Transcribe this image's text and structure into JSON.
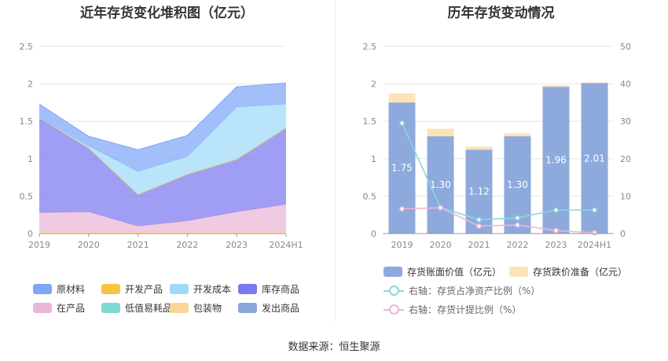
{
  "footer": {
    "source": "数据来源：恒生聚源"
  },
  "left": {
    "title": "近年存货变化堆积图（亿元）",
    "legend": [
      {
        "name": "原材料",
        "color": "#7fa6f8"
      },
      {
        "name": "开发产品",
        "color": "#f6c343"
      },
      {
        "name": "开发成本",
        "color": "#9fd9f8"
      },
      {
        "name": "库存商品",
        "color": "#7b78f0"
      },
      {
        "name": "在产品",
        "color": "#eab6d8"
      },
      {
        "name": "低值易耗品",
        "color": "#7fd8d4"
      },
      {
        "name": "包装物",
        "color": "#fbd596"
      },
      {
        "name": "发出商品",
        "color": "#8aa6d8"
      }
    ]
  },
  "right": {
    "title": "历年存货变动情况",
    "legend": [
      {
        "name": "存货账面价值（亿元）",
        "color": "#8eaadc"
      },
      {
        "name": "存货跌价准备（亿元）",
        "color": "#fde3b8"
      },
      {
        "name": "右轴：存货占净资产比例（%）",
        "color": "#8ad8d6"
      },
      {
        "name": "右轴：存货计提比例（%）",
        "color": "#eab6d8"
      }
    ]
  },
  "chart_data": [
    {
      "type": "area",
      "stacked": true,
      "title": "近年存货变化堆积图（亿元）",
      "categories": [
        "2019",
        "2020",
        "2021",
        "2022",
        "2023",
        "2024H1"
      ],
      "ylim": [
        0,
        2.5
      ],
      "yticks": [
        "0",
        "0.5",
        "1",
        "1.5",
        "2",
        "2.5"
      ],
      "series": [
        {
          "name": "包装物",
          "color": "#fbd596",
          "values": [
            0.02,
            0.02,
            0.02,
            0.02,
            0.02,
            0.02
          ]
        },
        {
          "name": "在产品",
          "color": "#eab6d8",
          "values": [
            0.26,
            0.27,
            0.08,
            0.15,
            0.27,
            0.37
          ]
        },
        {
          "name": "库存商品",
          "color": "#7b78f0",
          "values": [
            1.25,
            0.85,
            0.42,
            0.62,
            0.7,
            1.02
          ]
        },
        {
          "name": "开发产品",
          "color": "#f6c343",
          "values": [
            0.01,
            0.0,
            0.0,
            0.0,
            0.0,
            0.0
          ]
        },
        {
          "name": "开发成本",
          "color": "#9fd9f8",
          "values": [
            0.0,
            0.03,
            0.31,
            0.24,
            0.7,
            0.32
          ]
        },
        {
          "name": "原材料",
          "color": "#7fa6f8",
          "values": [
            0.19,
            0.13,
            0.29,
            0.28,
            0.27,
            0.28
          ]
        }
      ]
    },
    {
      "type": "bar",
      "stacked": true,
      "title": "历年存货变动情况",
      "categories": [
        "2019",
        "2020",
        "2021",
        "2022",
        "2023",
        "2024H1"
      ],
      "ylim": [
        0,
        2.5
      ],
      "yticks": [
        "0",
        "0.5",
        "1",
        "1.5",
        "2",
        "2.5"
      ],
      "y2lim": [
        0,
        50
      ],
      "y2ticks": [
        "0",
        "10",
        "20",
        "30",
        "40",
        "50"
      ],
      "series": [
        {
          "name": "存货账面价值（亿元）",
          "color": "#8eaadc",
          "values": [
            1.75,
            1.3,
            1.12,
            1.3,
            1.96,
            2.01
          ],
          "labels": [
            "1.75",
            "1.30",
            "1.12",
            "1.30",
            "1.96",
            "2.01"
          ]
        },
        {
          "name": "存货跌价准备（亿元）",
          "color": "#fde3b8",
          "values": [
            0.12,
            0.1,
            0.04,
            0.04,
            0.02,
            0.01
          ]
        }
      ],
      "lines": [
        {
          "name": "右轴：存货占净资产比例（%）",
          "color": "#8ad8d6",
          "axis": "right",
          "values": [
            29.5,
            7.0,
            3.7,
            4.2,
            6.3,
            6.3
          ]
        },
        {
          "name": "右轴：存货计提比例（%）",
          "color": "#eab6d8",
          "axis": "right",
          "values": [
            6.6,
            6.9,
            2.0,
            2.3,
            0.8,
            0.2
          ]
        }
      ]
    }
  ]
}
